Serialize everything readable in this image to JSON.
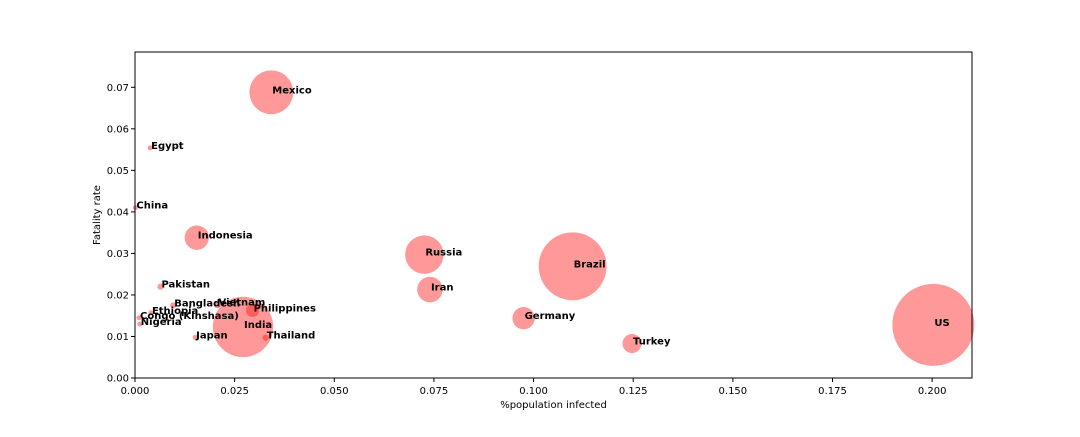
{
  "chart_data": {
    "type": "scatter",
    "xlabel": "%population infected",
    "ylabel": "Fatality rate",
    "xlim": [
      0.0,
      0.21
    ],
    "ylim": [
      0.0,
      0.0785
    ],
    "xticks": [
      "0.000",
      "0.025",
      "0.050",
      "0.075",
      "0.100",
      "0.125",
      "0.150",
      "0.175",
      "0.200"
    ],
    "yticks": [
      "0.00",
      "0.01",
      "0.02",
      "0.03",
      "0.04",
      "0.05",
      "0.06",
      "0.07"
    ],
    "xtick_values": [
      0.0,
      0.025,
      0.05,
      0.075,
      0.1,
      0.125,
      0.15,
      0.175,
      0.2
    ],
    "ytick_values": [
      0.0,
      0.01,
      0.02,
      0.03,
      0.04,
      0.05,
      0.06,
      0.07
    ],
    "grid": false,
    "marker_color": "#ff0000",
    "marker_alpha": 0.4,
    "bubble_size_note": "relative bubble area",
    "points": [
      {
        "label": "Mexico",
        "x": 0.0342,
        "y": 0.0688,
        "size": 1.0
      },
      {
        "label": "Egypt",
        "x": 0.0038,
        "y": 0.0554,
        "size": 0.012
      },
      {
        "label": "China",
        "x": 0.0001,
        "y": 0.041,
        "size": 0.001
      },
      {
        "label": "Indonesia",
        "x": 0.0155,
        "y": 0.0338,
        "size": 0.31
      },
      {
        "label": "Russia",
        "x": 0.0726,
        "y": 0.0297,
        "size": 0.77
      },
      {
        "label": "Brazil",
        "x": 0.1098,
        "y": 0.0269,
        "size": 2.4
      },
      {
        "label": "Iran",
        "x": 0.074,
        "y": 0.0213,
        "size": 0.34
      },
      {
        "label": "Pakistan",
        "x": 0.0064,
        "y": 0.022,
        "size": 0.02
      },
      {
        "label": "Bangladesh",
        "x": 0.0096,
        "y": 0.0175,
        "size": 0.02
      },
      {
        "label": "Vietnam",
        "x": 0.0207,
        "y": 0.0177,
        "size": 0.03
      },
      {
        "label": "Ethiopia",
        "x": 0.004,
        "y": 0.0157,
        "size": 0.006
      },
      {
        "label": "Philippines",
        "x": 0.0295,
        "y": 0.0163,
        "size": 0.09
      },
      {
        "label": "Congo (Kinshasa)",
        "x": 0.001,
        "y": 0.0145,
        "size": 0.003
      },
      {
        "label": "India",
        "x": 0.0271,
        "y": 0.0123,
        "size": 1.9
      },
      {
        "label": "Nigeria",
        "x": 0.0012,
        "y": 0.013,
        "size": 0.003
      },
      {
        "label": "Japan",
        "x": 0.0151,
        "y": 0.0098,
        "size": 0.012
      },
      {
        "label": "Thailand",
        "x": 0.0328,
        "y": 0.0097,
        "size": 0.02
      },
      {
        "label": "Germany",
        "x": 0.0975,
        "y": 0.0144,
        "size": 0.26
      },
      {
        "label": "Turkey",
        "x": 0.1247,
        "y": 0.0083,
        "size": 0.19
      },
      {
        "label": "US",
        "x": 0.2003,
        "y": 0.0128,
        "size": 3.5
      }
    ]
  }
}
